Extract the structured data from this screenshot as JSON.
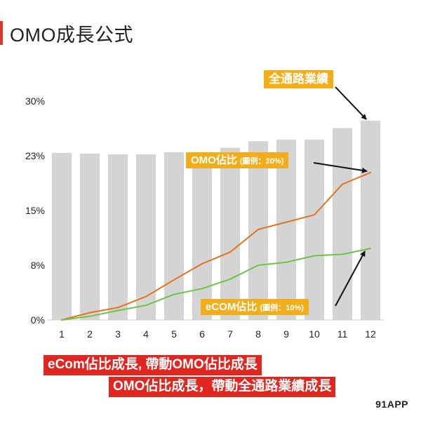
{
  "header": {
    "title": "OMO成長公式"
  },
  "chart_data": {
    "type": "bar+line",
    "categories": [
      "1",
      "2",
      "3",
      "4",
      "5",
      "6",
      "7",
      "8",
      "9",
      "10",
      "11",
      "12"
    ],
    "y_ticks": [
      "0%",
      "8%",
      "15%",
      "23%",
      "30%"
    ],
    "ylim": [
      0,
      30
    ],
    "series": [
      {
        "name": "全通路業績",
        "kind": "bar",
        "color": "#d4d4d4",
        "values": [
          22.9,
          22.8,
          22.7,
          22.7,
          23.0,
          23.0,
          23.6,
          24.5,
          24.7,
          24.7,
          26.3,
          27.3
        ]
      },
      {
        "name": "OMO佔比",
        "kind": "line",
        "color": "#e4731f",
        "values": [
          0,
          1.0,
          1.7,
          3.2,
          5.5,
          7.7,
          9.3,
          12.4,
          13.4,
          14.4,
          18.6,
          20.2
        ]
      },
      {
        "name": "eCOM佔比",
        "kind": "line",
        "color": "#6cc544",
        "values": [
          0,
          0.5,
          1.3,
          2.0,
          3.5,
          4.3,
          5.6,
          7.5,
          7.9,
          8.8,
          9.0,
          9.8
        ]
      }
    ],
    "grid": false,
    "legend": "callouts"
  },
  "callouts": {
    "total": "全通路業績",
    "omo_main": "OMO佔比",
    "omo_note": "(圖例：20%)",
    "ecom_main": "eCOM佔比",
    "ecom_note": "(圖例：10%)"
  },
  "banners": {
    "line1": "eCom佔比成長, 帶動OMO佔比成長",
    "line2": "OMO佔比成長，帶動全通路業績成長"
  },
  "brand": "91APP"
}
